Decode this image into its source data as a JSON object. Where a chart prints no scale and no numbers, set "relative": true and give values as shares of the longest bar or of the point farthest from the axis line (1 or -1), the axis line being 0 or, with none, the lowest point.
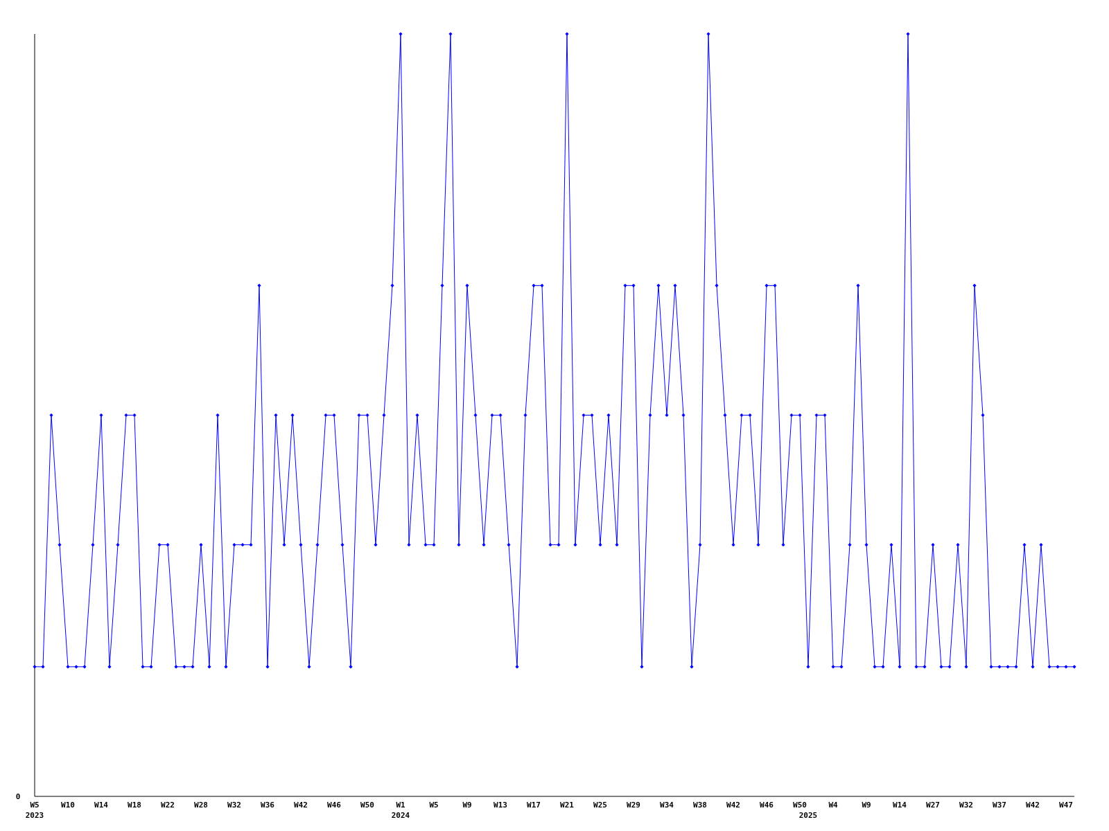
{
  "chart_data": {
    "type": "line",
    "relative": true,
    "annotations": [
      "0"
    ],
    "marker": "diamond",
    "line_style": "solid",
    "categories": [
      "W5\n2023",
      null,
      null,
      null,
      "W10",
      null,
      null,
      null,
      "W14",
      null,
      null,
      null,
      "W18",
      null,
      null,
      null,
      "W22",
      null,
      null,
      null,
      "W28",
      null,
      null,
      null,
      "W32",
      null,
      null,
      null,
      "W36",
      null,
      null,
      null,
      "W42",
      null,
      null,
      null,
      "W46",
      null,
      null,
      null,
      "W50",
      null,
      null,
      null,
      "W1\n2024",
      null,
      null,
      null,
      "W5",
      null,
      null,
      null,
      "W9",
      null,
      null,
      null,
      "W13",
      null,
      null,
      null,
      "W17",
      null,
      null,
      null,
      "W21",
      null,
      null,
      null,
      "W25",
      null,
      null,
      null,
      "W29",
      null,
      null,
      null,
      "W34",
      null,
      null,
      null,
      "W38",
      null,
      null,
      null,
      "W42",
      null,
      null,
      null,
      "W46",
      null,
      null,
      null,
      "W50",
      "\n2025",
      null,
      null,
      "W4",
      null,
      null,
      null,
      "W9",
      null,
      null,
      null,
      "W14",
      null,
      null,
      null,
      "W27",
      null,
      null,
      null,
      "W32",
      null,
      null,
      null,
      "W37",
      null,
      null,
      null,
      "W42",
      null,
      null,
      null,
      "W47",
      null
    ],
    "series": [
      {
        "color": "#0000ff",
        "values": [
          0.17,
          0.17,
          0.5,
          0.33,
          0.17,
          0.17,
          0.17,
          0.33,
          0.5,
          0.17,
          0.33,
          0.5,
          0.5,
          0.17,
          0.17,
          0.33,
          0.33,
          0.17,
          0.17,
          0.17,
          0.33,
          0.17,
          0.5,
          0.17,
          0.33,
          0.33,
          0.33,
          0.67,
          0.17,
          0.5,
          0.33,
          0.5,
          0.33,
          0.17,
          0.33,
          0.5,
          0.5,
          0.33,
          0.17,
          0.5,
          0.5,
          0.33,
          0.5,
          0.67,
          1,
          0.33,
          0.5,
          0.33,
          0.33,
          0.67,
          1,
          0.33,
          0.67,
          0.5,
          0.33,
          0.5,
          0.5,
          0.33,
          0.17,
          0.5,
          0.67,
          0.67,
          0.33,
          0.33,
          1,
          0.33,
          0.5,
          0.5,
          0.33,
          0.5,
          0.33,
          0.67,
          0.67,
          0.17,
          0.5,
          0.67,
          0.5,
          0.67,
          0.5,
          0.17,
          0.33,
          1,
          0.67,
          0.5,
          0.33,
          0.5,
          0.5,
          0.33,
          0.67,
          0.67,
          0.33,
          0.5,
          0.5,
          0.17,
          0.5,
          0.5,
          0.17,
          0.17,
          0.33,
          0.67,
          0.33,
          0.17,
          0.17,
          0.33,
          0.17,
          1,
          0.17,
          0.17,
          0.33,
          0.17,
          0.17,
          0.33,
          0.17,
          0.67,
          0.5,
          0.17,
          0.17,
          0.17,
          0.17,
          0.33,
          0.17,
          0.33,
          0.17,
          0.17,
          0.17,
          0.17
        ]
      }
    ]
  }
}
